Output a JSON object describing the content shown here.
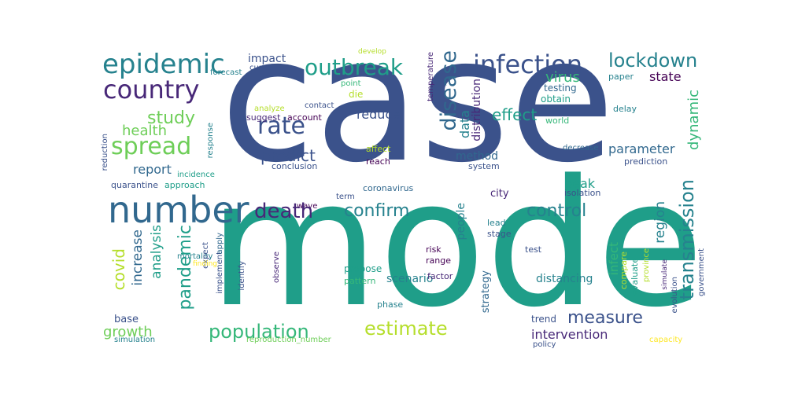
{
  "palette": {
    "navy": "#3b528b",
    "purple": "#482878",
    "dark_purple": "#440154",
    "blue": "#31688e",
    "teal": "#26828e",
    "teal_green": "#1f9e89",
    "green": "#35b779",
    "light_green": "#6ece58",
    "lime": "#b5de2b",
    "yellow": "#fde725"
  },
  "words": [
    {
      "text": "case",
      "color": "navy"
    },
    {
      "text": "model",
      "color": "teal_green"
    },
    {
      "text": "number",
      "color": "blue"
    },
    {
      "text": "epidemic",
      "color": "teal"
    },
    {
      "text": "country",
      "color": "purple"
    },
    {
      "text": "rate",
      "color": "navy"
    },
    {
      "text": "infection",
      "color": "navy"
    },
    {
      "text": "outbreak",
      "color": "teal_green"
    },
    {
      "text": "lockdown",
      "color": "teal"
    },
    {
      "text": "disease",
      "color": "blue"
    },
    {
      "text": "spread",
      "color": "light_green"
    },
    {
      "text": "study",
      "color": "light_green"
    },
    {
      "text": "death",
      "color": "purple"
    },
    {
      "text": "confirm",
      "color": "teal"
    },
    {
      "text": "control",
      "color": "teal"
    },
    {
      "text": "population",
      "color": "green"
    },
    {
      "text": "estimate",
      "color": "lime"
    },
    {
      "text": "measure",
      "color": "navy"
    },
    {
      "text": "transmission",
      "color": "teal"
    },
    {
      "text": "pandemic",
      "color": "teal_green"
    },
    {
      "text": "covid",
      "color": "lime"
    },
    {
      "text": "growth",
      "color": "light_green"
    },
    {
      "text": "intervention",
      "color": "purple"
    },
    {
      "text": "predict",
      "color": "navy"
    },
    {
      "text": "effect",
      "color": "teal_green"
    },
    {
      "text": "health",
      "color": "light_green"
    },
    {
      "text": "report",
      "color": "blue"
    },
    {
      "text": "parameter",
      "color": "blue"
    },
    {
      "text": "state",
      "color": "dark_purple"
    },
    {
      "text": "virus",
      "color": "green"
    },
    {
      "text": "dynamic",
      "color": "green"
    },
    {
      "text": "region",
      "color": "teal"
    },
    {
      "text": "peak",
      "color": "teal_green"
    },
    {
      "text": "reduce",
      "color": "navy"
    },
    {
      "text": "method",
      "color": "blue"
    },
    {
      "text": "increase",
      "color": "blue"
    },
    {
      "text": "analysis",
      "color": "teal_green"
    },
    {
      "text": "distancing",
      "color": "teal"
    },
    {
      "text": "infect",
      "color": "green"
    },
    {
      "text": "city",
      "color": "purple"
    },
    {
      "text": "base",
      "color": "navy"
    },
    {
      "text": "trend",
      "color": "navy"
    },
    {
      "text": "scenario",
      "color": "teal"
    },
    {
      "text": "people",
      "color": "teal"
    },
    {
      "text": "strategy",
      "color": "blue"
    },
    {
      "text": "impact",
      "color": "navy"
    },
    {
      "text": "data",
      "color": "teal"
    },
    {
      "text": "distribution",
      "color": "purple"
    },
    {
      "text": "temperature",
      "color": "purple"
    },
    {
      "text": "testing",
      "color": "blue"
    },
    {
      "text": "paper",
      "color": "teal"
    },
    {
      "text": "obtain",
      "color": "teal_green"
    },
    {
      "text": "world",
      "color": "green"
    },
    {
      "text": "delay",
      "color": "teal"
    },
    {
      "text": "prediction",
      "color": "navy"
    },
    {
      "text": "decrease",
      "color": "blue"
    },
    {
      "text": "system",
      "color": "navy"
    },
    {
      "text": "isolation",
      "color": "navy"
    },
    {
      "text": "coronavirus",
      "color": "blue"
    },
    {
      "text": "term",
      "color": "navy"
    },
    {
      "text": "stage",
      "color": "navy"
    },
    {
      "text": "lead",
      "color": "teal"
    },
    {
      "text": "test",
      "color": "navy"
    },
    {
      "text": "risk",
      "color": "dark_purple"
    },
    {
      "text": "range",
      "color": "dark_purple"
    },
    {
      "text": "factor",
      "color": "purple"
    },
    {
      "text": "propose",
      "color": "teal_green"
    },
    {
      "text": "pattern",
      "color": "green"
    },
    {
      "text": "phase",
      "color": "teal"
    },
    {
      "text": "policy",
      "color": "navy"
    },
    {
      "text": "forecast",
      "color": "teal"
    },
    {
      "text": "curve",
      "color": "navy"
    },
    {
      "text": "die",
      "color": "lime"
    },
    {
      "text": "point",
      "color": "green"
    },
    {
      "text": "analyze",
      "color": "lime"
    },
    {
      "text": "contact",
      "color": "navy"
    },
    {
      "text": "suggest",
      "color": "purple"
    },
    {
      "text": "account",
      "color": "dark_purple"
    },
    {
      "text": "conclusion",
      "color": "navy"
    },
    {
      "text": "reach",
      "color": "dark_purple"
    },
    {
      "text": "affect",
      "color": "lime"
    },
    {
      "text": "wave",
      "color": "dark_purple"
    },
    {
      "text": "quarantine",
      "color": "navy"
    },
    {
      "text": "approach",
      "color": "teal_green"
    },
    {
      "text": "incidence",
      "color": "teal_green"
    },
    {
      "text": "mortality",
      "color": "teal"
    },
    {
      "text": "reduction",
      "color": "navy"
    },
    {
      "text": "response",
      "color": "teal"
    },
    {
      "text": "develop",
      "color": "lime"
    },
    {
      "text": "simulation",
      "color": "teal"
    },
    {
      "text": "reproduction_number",
      "color": "light_green"
    },
    {
      "text": "capacity",
      "color": "yellow"
    },
    {
      "text": "government",
      "color": "navy"
    },
    {
      "text": "evolution",
      "color": "navy"
    },
    {
      "text": "province",
      "color": "lime"
    },
    {
      "text": "compare",
      "color": "lime"
    },
    {
      "text": "evaluate",
      "color": "teal_green"
    },
    {
      "text": "implement",
      "color": "navy"
    },
    {
      "text": "identify",
      "color": "navy"
    },
    {
      "text": "observe",
      "color": "purple"
    },
    {
      "text": "apply",
      "color": "blue"
    },
    {
      "text": "expect",
      "color": "navy"
    },
    {
      "text": "finding",
      "color": "yellow"
    },
    {
      "text": "simulate",
      "color": "purple"
    }
  ]
}
